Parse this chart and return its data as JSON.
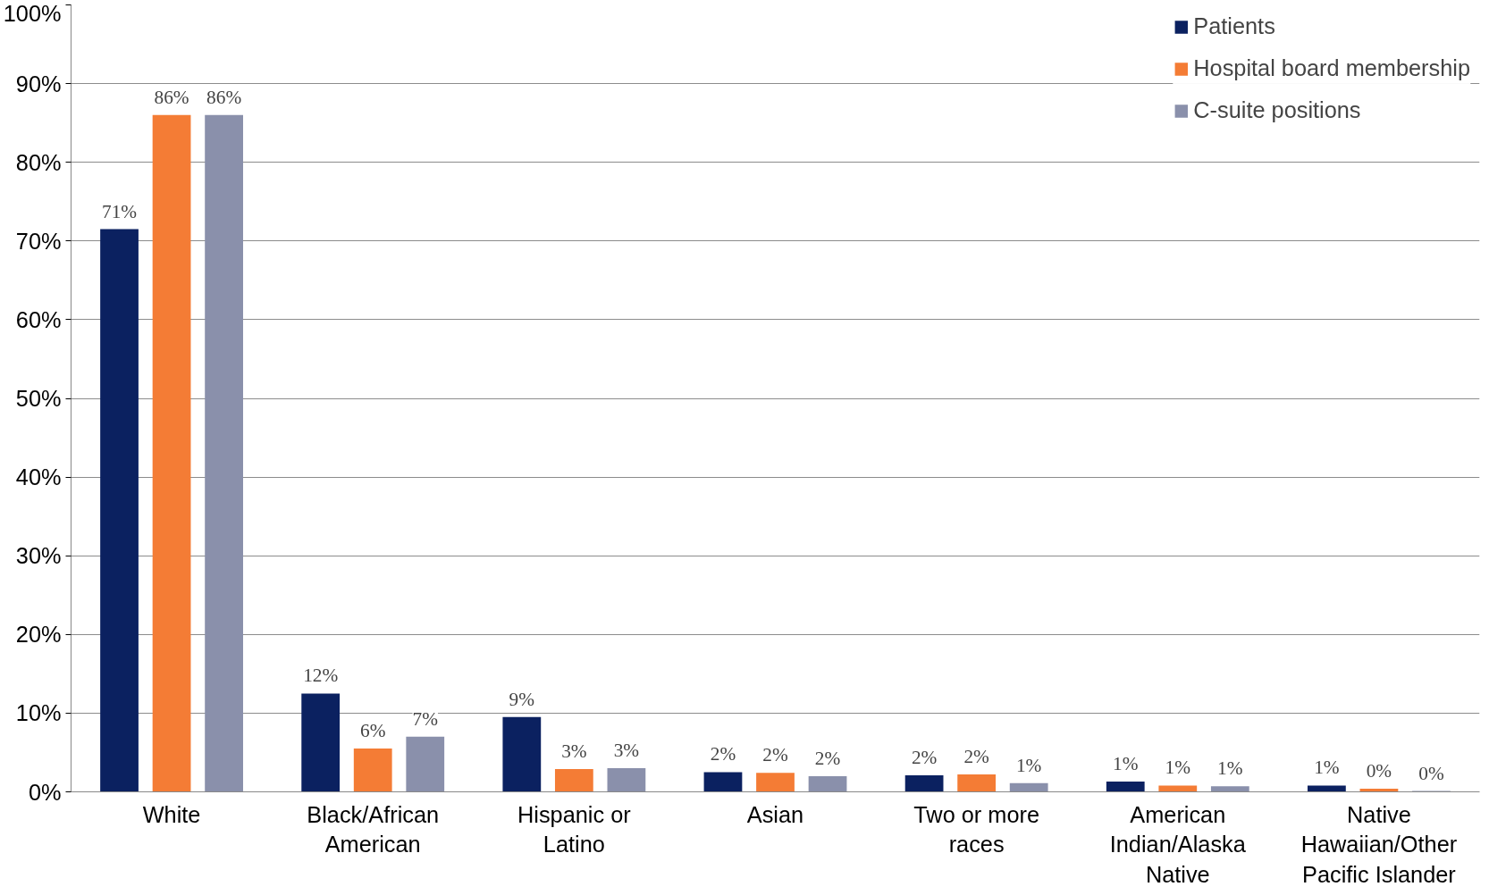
{
  "chart_data": {
    "type": "bar",
    "categories": [
      "White",
      "Black/African American",
      "Hispanic or Latino",
      "Asian",
      "Two or more races",
      "American Indian/Alaska Native",
      "Native Hawaiian/Other Pacific Islander"
    ],
    "series": [
      {
        "name": "Patients",
        "color": "#0b2160",
        "values": [
          71.5,
          12.5,
          9.5,
          2.5,
          2.1,
          1.3,
          0.8
        ],
        "value_labels": [
          "71%",
          "12%",
          "9%",
          "2%",
          "2%",
          "1%",
          "1%"
        ]
      },
      {
        "name": "Hospital board membership",
        "color": "#f47c35",
        "values": [
          86,
          5.5,
          2.9,
          2.4,
          2.2,
          0.8,
          0.4
        ],
        "value_labels": [
          "86%",
          "6%",
          "3%",
          "2%",
          "2%",
          "1%",
          "0%"
        ]
      },
      {
        "name": "C-suite positions",
        "color": "#8a90ab",
        "values": [
          86,
          7,
          3,
          2.0,
          1.1,
          0.7,
          0.1
        ],
        "value_labels": [
          "86%",
          "7%",
          "3%",
          "2%",
          "1%",
          "1%",
          "0%"
        ]
      }
    ],
    "ylim": [
      0,
      100
    ],
    "yticks": [
      {
        "value": 0,
        "label": "0%"
      },
      {
        "value": 10,
        "label": "10%"
      },
      {
        "value": 20,
        "label": "20%"
      },
      {
        "value": 30,
        "label": "30%"
      },
      {
        "value": 40,
        "label": "40%"
      },
      {
        "value": 50,
        "label": "50%"
      },
      {
        "value": 60,
        "label": "60%"
      },
      {
        "value": 70,
        "label": "70%"
      },
      {
        "value": 80,
        "label": "80%"
      },
      {
        "value": 90,
        "label": "90%"
      },
      {
        "value": 100,
        "label": "100%"
      }
    ],
    "grid": "y",
    "legend": "top right"
  }
}
